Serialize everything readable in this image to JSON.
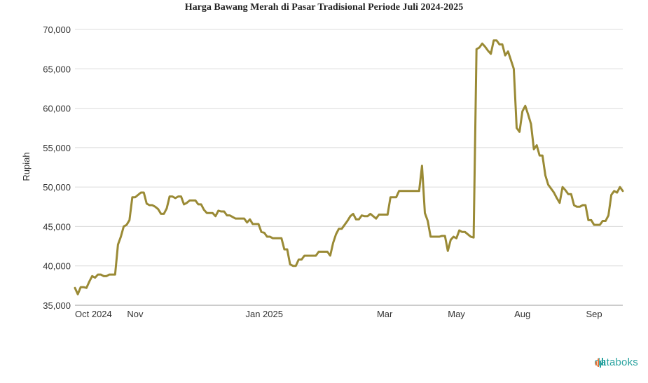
{
  "chart_data": {
    "type": "line",
    "title": "Harga Bawang Merah di Pasar Tradisional Periode Juli 2024-2025",
    "xlabel": "",
    "ylabel": "Rupiah",
    "ylim": [
      35000,
      70000
    ],
    "yticks": [
      "35,000",
      "40,000",
      "45,000",
      "50,000",
      "55,000",
      "60,000",
      "65,000",
      "70,000"
    ],
    "ytick_values": [
      35000,
      40000,
      45000,
      50000,
      55000,
      60000,
      65000,
      70000
    ],
    "xticks": [
      {
        "label": "Oct 2024",
        "index": 0
      },
      {
        "label": "Nov",
        "index": 21
      },
      {
        "label": "Jan 2025",
        "index": 66
      },
      {
        "label": "Mar",
        "index": 108
      },
      {
        "label": "May",
        "index": 133
      },
      {
        "label": "Aug",
        "index": 156
      },
      {
        "label": "Sep",
        "index": 181
      }
    ],
    "grid": true,
    "line_color": "#9a8a35",
    "series": [
      {
        "values": [
          37200,
          36400,
          37300,
          37300,
          37200,
          38000,
          38700,
          38500,
          38900,
          38900,
          38700,
          38700,
          38900,
          38900,
          38900,
          42700,
          43700,
          45000,
          45200,
          45800,
          48700,
          48700,
          49000,
          49300,
          49300,
          47900,
          47700,
          47700,
          47500,
          47200,
          46600,
          46600,
          47300,
          48800,
          48800,
          48600,
          48800,
          48800,
          47800,
          48000,
          48300,
          48300,
          48300,
          47800,
          47800,
          47100,
          46700,
          46700,
          46700,
          46300,
          47000,
          46900,
          46900,
          46400,
          46400,
          46200,
          46000,
          46000,
          46000,
          46000,
          45500,
          45900,
          45300,
          45300,
          45300,
          44300,
          44200,
          43700,
          43700,
          43500,
          43500,
          43500,
          43500,
          42100,
          42100,
          40200,
          40000,
          40000,
          40800,
          40800,
          41300,
          41300,
          41300,
          41300,
          41300,
          41800,
          41800,
          41800,
          41800,
          41300,
          42900,
          44000,
          44700,
          44700,
          45200,
          45700,
          46300,
          46600,
          45900,
          45900,
          46400,
          46300,
          46300,
          46600,
          46300,
          46000,
          46500,
          46500,
          46500,
          46500,
          48700,
          48700,
          48700,
          49500,
          49500,
          49500,
          49500,
          49500,
          49500,
          49500,
          49500,
          52700,
          46700,
          45700,
          43700,
          43700,
          43700,
          43700,
          43800,
          43800,
          41900,
          43300,
          43700,
          43500,
          44500,
          44300,
          44300,
          44000,
          43700,
          43600,
          67500,
          67700,
          68200,
          67800,
          67300,
          66900,
          68600,
          68600,
          68100,
          68100,
          66700,
          67200,
          66100,
          65000,
          57500,
          57000,
          59600,
          60300,
          59200,
          58000,
          54800,
          55300,
          54000,
          54000,
          51500,
          50300,
          49800,
          49300,
          48600,
          48000,
          50000,
          49600,
          49100,
          49100,
          47700,
          47500,
          47500,
          47700,
          47700,
          45800,
          45800,
          45200,
          45200,
          45200,
          45700,
          45700,
          46400,
          49000,
          49500,
          49300,
          50000,
          49500
        ]
      }
    ]
  },
  "branding": {
    "name": "databoks"
  }
}
